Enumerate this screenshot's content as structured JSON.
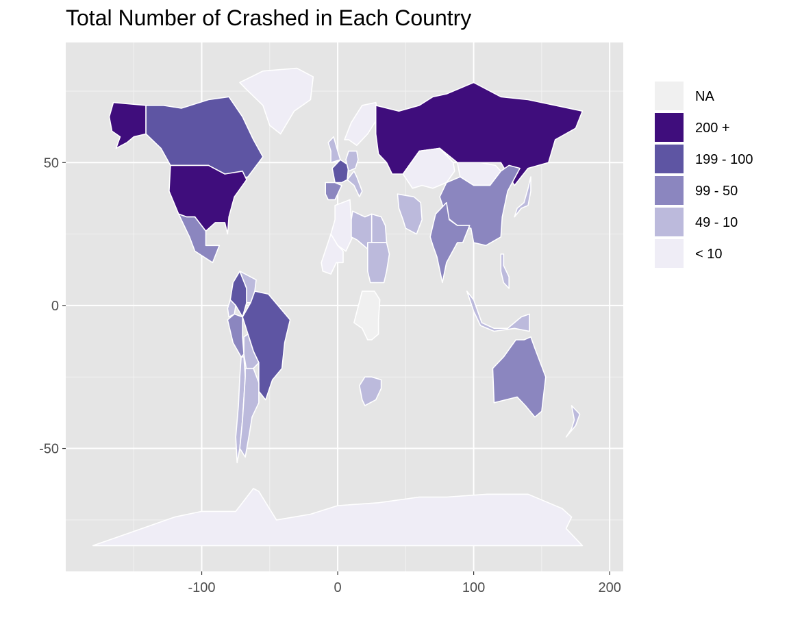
{
  "title": "Total Number of Crashed in Each Country",
  "axes": {
    "x_ticks": [
      {
        "value": -100,
        "label": "-100"
      },
      {
        "value": 0,
        "label": "0"
      },
      {
        "value": 100,
        "label": "100"
      },
      {
        "value": 200,
        "label": "200"
      }
    ],
    "y_ticks": [
      {
        "value": 50,
        "label": "50"
      },
      {
        "value": 0,
        "label": "0"
      },
      {
        "value": -50,
        "label": "-50"
      }
    ],
    "xlim": [
      -200,
      210
    ],
    "ylim": [
      -93,
      92
    ]
  },
  "colors": {
    "panel": "#e5e5e5",
    "grid_major": "#ffffff",
    "border": "#ffffff",
    "na": "#f0f0f0",
    "c200": "#3f007d",
    "c100": "#54278f",
    "c50": "#807dba",
    "c10": "#bcbddc",
    "c0": "#efedf5"
  },
  "legend": {
    "items": [
      {
        "label": "NA",
        "color": "#f0f0f0"
      },
      {
        "label": "200 +",
        "color": "#3f0d7c"
      },
      {
        "label": "199 - 100",
        "color": "#5e55a3"
      },
      {
        "label": "99 - 50",
        "color": "#8b86bf"
      },
      {
        "label": "49 - 10",
        "color": "#bcbadc"
      },
      {
        "label": "< 10",
        "color": "#efedf6"
      }
    ]
  },
  "chart_data": {
    "type": "choropleth",
    "title": "Total Number of Crashed in Each Country",
    "legend_title": "",
    "bins": [
      "NA",
      "200 +",
      "199 - 100",
      "99 - 50",
      "49 - 10",
      "< 10"
    ],
    "regions": [
      {
        "name": "USA",
        "bin": "200 +"
      },
      {
        "name": "Alaska",
        "bin": "200 +"
      },
      {
        "name": "Russia",
        "bin": "200 +"
      },
      {
        "name": "Canada",
        "bin": "199 - 100"
      },
      {
        "name": "Brazil",
        "bin": "199 - 100"
      },
      {
        "name": "Colombia",
        "bin": "199 - 100"
      },
      {
        "name": "France",
        "bin": "199 - 100"
      },
      {
        "name": "Mexico",
        "bin": "99 - 50"
      },
      {
        "name": "Peru",
        "bin": "99 - 50"
      },
      {
        "name": "China",
        "bin": "99 - 50"
      },
      {
        "name": "India",
        "bin": "99 - 50"
      },
      {
        "name": "Australia",
        "bin": "99 - 50"
      },
      {
        "name": "Spain",
        "bin": "99 - 50"
      },
      {
        "name": "Argentina",
        "bin": "49 - 10"
      },
      {
        "name": "Chile",
        "bin": "49 - 10"
      },
      {
        "name": "Bolivia",
        "bin": "49 - 10"
      },
      {
        "name": "Venezuela",
        "bin": "49 - 10"
      },
      {
        "name": "Ecuador",
        "bin": "49 - 10"
      },
      {
        "name": "Germany",
        "bin": "49 - 10"
      },
      {
        "name": "United Kingdom",
        "bin": "49 - 10"
      },
      {
        "name": "Italy",
        "bin": "49 - 10"
      },
      {
        "name": "Libya",
        "bin": "49 - 10"
      },
      {
        "name": "Egypt",
        "bin": "49 - 10"
      },
      {
        "name": "Iran",
        "bin": "49 - 10"
      },
      {
        "name": "Sudan",
        "bin": "49 - 10"
      },
      {
        "name": "South Africa",
        "bin": "49 - 10"
      },
      {
        "name": "Indonesia",
        "bin": "49 - 10"
      },
      {
        "name": "Philippines",
        "bin": "49 - 10"
      },
      {
        "name": "Japan",
        "bin": "49 - 10"
      },
      {
        "name": "New Zealand",
        "bin": "49 - 10"
      },
      {
        "name": "Antarctica",
        "bin": "< 10"
      },
      {
        "name": "Greenland",
        "bin": "< 10"
      },
      {
        "name": "Mongolia",
        "bin": "< 10"
      },
      {
        "name": "Kazakhstan",
        "bin": "< 10"
      },
      {
        "name": "Algeria",
        "bin": "< 10"
      },
      {
        "name": "Mali",
        "bin": "< 10"
      },
      {
        "name": "Scandinavia",
        "bin": "< 10"
      },
      {
        "name": "DR Congo",
        "bin": "NA"
      }
    ]
  }
}
